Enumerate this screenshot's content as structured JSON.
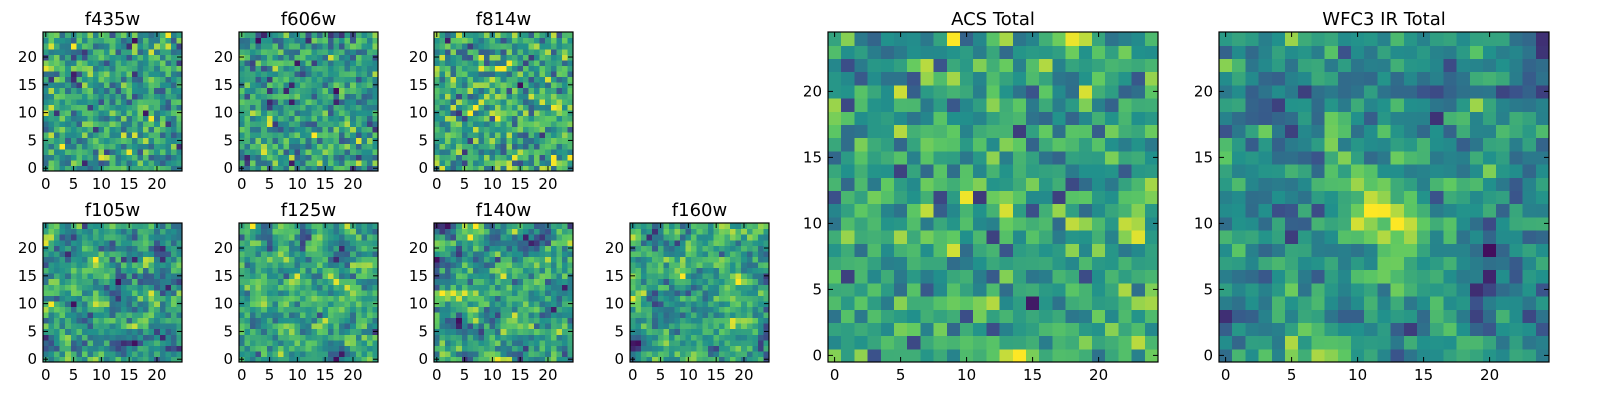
{
  "figure": {
    "description_type": "grid of image panels (heatmaps) showing per-filter noise cutouts and combined totals"
  },
  "colormap": {
    "name": "viridis",
    "stops": [
      "#440154",
      "#3b528b",
      "#21918c",
      "#5ec962",
      "#fde725"
    ]
  },
  "chart_data": [
    {
      "type": "heatmap",
      "title": "f435w",
      "rows": 25,
      "cols": 25,
      "xlim": [
        0,
        24
      ],
      "ylim": [
        0,
        24
      ],
      "xticks": [
        0,
        5,
        10,
        15,
        20
      ],
      "yticks": [
        0,
        5,
        10,
        15,
        20
      ],
      "texture": "pixel-noise",
      "seed": 11
    },
    {
      "type": "heatmap",
      "title": "f606w",
      "rows": 25,
      "cols": 25,
      "xlim": [
        0,
        24
      ],
      "ylim": [
        0,
        24
      ],
      "xticks": [
        0,
        5,
        10,
        15,
        20
      ],
      "yticks": [
        0,
        5,
        10,
        15,
        20
      ],
      "texture": "pixel-noise",
      "seed": 23
    },
    {
      "type": "heatmap",
      "title": "f814w",
      "rows": 25,
      "cols": 25,
      "xlim": [
        0,
        24
      ],
      "ylim": [
        0,
        24
      ],
      "xticks": [
        0,
        5,
        10,
        15,
        20
      ],
      "yticks": [
        0,
        5,
        10,
        15,
        20
      ],
      "texture": "pixel-noise",
      "seed": 37
    },
    {
      "type": "heatmap",
      "title": "f105w",
      "rows": 25,
      "cols": 25,
      "xlim": [
        0,
        24
      ],
      "ylim": [
        0,
        24
      ],
      "xticks": [
        0,
        5,
        10,
        15,
        20
      ],
      "yticks": [
        0,
        5,
        10,
        15,
        20
      ],
      "texture": "correlated-noise",
      "seed": 41
    },
    {
      "type": "heatmap",
      "title": "f125w",
      "rows": 25,
      "cols": 25,
      "xlim": [
        0,
        24
      ],
      "ylim": [
        0,
        24
      ],
      "xticks": [
        0,
        5,
        10,
        15,
        20
      ],
      "yticks": [
        0,
        5,
        10,
        15,
        20
      ],
      "texture": "correlated-noise",
      "seed": 53
    },
    {
      "type": "heatmap",
      "title": "f140w",
      "rows": 25,
      "cols": 25,
      "xlim": [
        0,
        24
      ],
      "ylim": [
        0,
        24
      ],
      "xticks": [
        0,
        5,
        10,
        15,
        20
      ],
      "yticks": [
        0,
        5,
        10,
        15,
        20
      ],
      "texture": "correlated-noise",
      "seed": 67
    },
    {
      "type": "heatmap",
      "title": "f160w",
      "rows": 25,
      "cols": 25,
      "xlim": [
        0,
        24
      ],
      "ylim": [
        0,
        24
      ],
      "xticks": [
        0,
        5,
        10,
        15,
        20
      ],
      "yticks": [
        0,
        5,
        10,
        15,
        20
      ],
      "texture": "correlated-noise",
      "seed": 79
    },
    {
      "type": "heatmap",
      "title": "ACS Total",
      "rows": 25,
      "cols": 25,
      "xlim": [
        0,
        24
      ],
      "ylim": [
        0,
        24
      ],
      "xticks": [
        0,
        5,
        10,
        15,
        20
      ],
      "yticks": [
        0,
        5,
        10,
        15,
        20
      ],
      "texture": "pixel-noise-bright",
      "seed": 97
    },
    {
      "type": "heatmap",
      "title": "WFC3 IR Total",
      "rows": 25,
      "cols": 25,
      "xlim": [
        0,
        24
      ],
      "ylim": [
        0,
        24
      ],
      "xticks": [
        0,
        5,
        10,
        15,
        20
      ],
      "yticks": [
        0,
        5,
        10,
        15,
        20
      ],
      "texture": "smooth-with-central-peak",
      "seed": 113
    }
  ]
}
